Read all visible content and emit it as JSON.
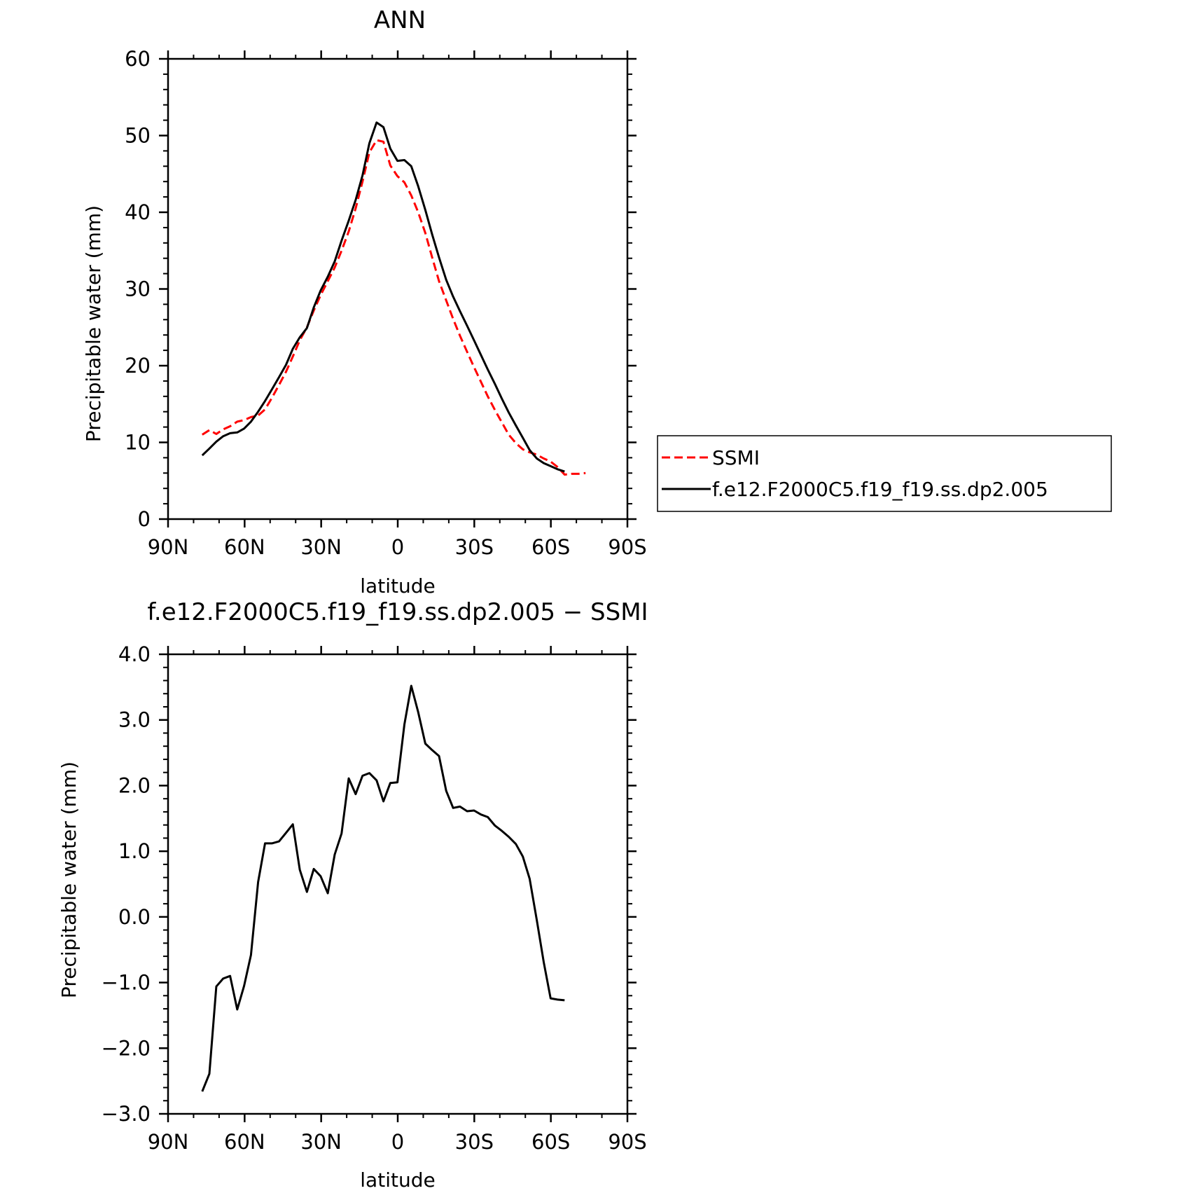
{
  "colors": {
    "ssmi": "#ff0000",
    "model": "#000000",
    "axis": "#000000"
  },
  "chart_data": [
    {
      "type": "line",
      "title": "ANN",
      "xlabel": "latitude",
      "ylabel": "Precipitable water (mm)",
      "xlim": [
        90,
        -90
      ],
      "ylim": [
        0,
        60
      ],
      "x_ticks": [
        90,
        60,
        30,
        0,
        -30,
        -60,
        -90
      ],
      "x_tick_labels": [
        "90N",
        "60N",
        "30N",
        "0",
        "30S",
        "60S",
        "90S"
      ],
      "y_ticks": [
        0,
        10,
        20,
        30,
        40,
        50,
        60
      ],
      "y_tick_labels": [
        "0",
        "10",
        "20",
        "30",
        "40",
        "50",
        "60"
      ],
      "legend_position": "right",
      "series": [
        {
          "name": "SSMI",
          "color": "#ff0000",
          "dash": "dashed",
          "x": [
            76.6,
            73.8,
            71.1,
            68.4,
            65.7,
            62.9,
            60.2,
            57.5,
            54.7,
            52.0,
            49.3,
            46.5,
            43.8,
            41.1,
            38.4,
            35.6,
            32.9,
            30.2,
            27.4,
            24.7,
            22.0,
            19.2,
            16.5,
            13.8,
            11.1,
            8.3,
            5.6,
            2.9,
            0.1,
            -2.6,
            -5.3,
            -8.0,
            -10.8,
            -13.5,
            -16.2,
            -19.0,
            -21.7,
            -24.4,
            -27.2,
            -29.9,
            -32.6,
            -35.3,
            -38.1,
            -40.8,
            -43.5,
            -46.3,
            -49.0,
            -51.7,
            -54.5,
            -57.2,
            -59.9,
            -62.6,
            -65.4,
            -68.1,
            -70.8,
            -73.6
          ],
          "y": [
            11.0,
            11.6,
            11.1,
            11.7,
            12.1,
            12.7,
            12.9,
            13.3,
            13.5,
            14.3,
            15.8,
            17.5,
            19.2,
            21.2,
            23.3,
            25.0,
            27.2,
            29.2,
            31.0,
            32.8,
            35.0,
            37.5,
            40.5,
            44.0,
            47.8,
            49.4,
            49.2,
            46.1,
            44.7,
            43.9,
            42.2,
            40.0,
            37.3,
            34.1,
            31.0,
            28.5,
            26.1,
            23.9,
            21.8,
            19.8,
            17.9,
            16.0,
            14.2,
            12.6,
            11.0,
            9.9,
            9.1,
            8.7,
            8.4,
            7.9,
            7.5,
            6.8,
            5.8,
            5.9,
            5.9,
            6.0
          ]
        },
        {
          "name": "f.e12.F2000C5.f19_f19.ss.dp2.005",
          "color": "#000000",
          "dash": "solid",
          "x": [
            76.6,
            73.8,
            71.1,
            68.4,
            65.7,
            62.9,
            60.2,
            57.5,
            54.7,
            52.0,
            49.3,
            46.5,
            43.8,
            41.1,
            38.4,
            35.6,
            32.9,
            30.2,
            27.4,
            24.7,
            22.0,
            19.2,
            16.5,
            13.8,
            11.1,
            8.3,
            5.6,
            2.9,
            0.1,
            -2.6,
            -5.3,
            -8.0,
            -10.8,
            -13.5,
            -16.2,
            -19.0,
            -21.7,
            -24.4,
            -27.2,
            -29.9,
            -32.6,
            -35.3,
            -38.1,
            -40.8,
            -43.5,
            -46.3,
            -49.0,
            -51.7,
            -54.5,
            -57.2,
            -59.9,
            -62.6,
            -65.4
          ],
          "y": [
            8.3,
            9.2,
            10.1,
            10.8,
            11.2,
            11.3,
            11.8,
            12.7,
            14.0,
            15.4,
            16.9,
            18.5,
            20.1,
            22.2,
            23.7,
            24.9,
            27.6,
            29.8,
            31.6,
            33.6,
            36.3,
            38.9,
            41.6,
            44.8,
            49.0,
            51.7,
            51.1,
            48.3,
            46.7,
            46.8,
            46.0,
            43.4,
            40.3,
            37.1,
            34.1,
            31.2,
            29.0,
            27.1,
            25.2,
            23.3,
            21.4,
            19.5,
            17.6,
            15.7,
            13.9,
            12.2,
            10.6,
            9.0,
            7.9,
            7.3,
            6.9,
            6.5,
            6.2
          ]
        }
      ]
    },
    {
      "type": "line",
      "title": "f.e12.F2000C5.f19_f19.ss.dp2.005 − SSMI",
      "xlabel": "latitude",
      "ylabel": "Precipitable water (mm)",
      "xlim": [
        90,
        -90
      ],
      "ylim": [
        -3.0,
        4.0
      ],
      "x_ticks": [
        90,
        60,
        30,
        0,
        -30,
        -60,
        -90
      ],
      "x_tick_labels": [
        "90N",
        "60N",
        "30N",
        "0",
        "30S",
        "60S",
        "90S"
      ],
      "y_ticks": [
        -3,
        -2,
        -1,
        0,
        1,
        2,
        3,
        4
      ],
      "y_tick_labels": [
        "−3.0",
        "−2.0",
        "−1.0",
        "0.0",
        "1.0",
        "2.0",
        "3.0",
        "4.0"
      ],
      "series": [
        {
          "color": "#000000",
          "dash": "solid",
          "x": [
            76.6,
            73.8,
            71.1,
            68.4,
            65.7,
            62.9,
            60.2,
            57.5,
            54.7,
            52.0,
            49.3,
            46.5,
            43.8,
            41.1,
            38.4,
            35.6,
            32.9,
            30.2,
            27.4,
            24.7,
            22.0,
            19.2,
            16.5,
            13.8,
            11.1,
            8.3,
            5.6,
            2.9,
            0.1,
            -2.6,
            -5.3,
            -8.0,
            -10.8,
            -13.5,
            -16.2,
            -19.0,
            -21.7,
            -24.4,
            -27.2,
            -29.9,
            -32.6,
            -35.3,
            -38.1,
            -40.8,
            -43.5,
            -46.3,
            -49.0,
            -51.7,
            -54.5,
            -57.2,
            -59.9,
            -62.6,
            -65.4
          ],
          "y": [
            -2.66,
            -2.39,
            -1.06,
            -0.94,
            -0.9,
            -1.41,
            -1.05,
            -0.58,
            0.53,
            1.12,
            1.12,
            1.15,
            1.28,
            1.41,
            0.72,
            0.38,
            0.73,
            0.62,
            0.36,
            0.95,
            1.27,
            2.11,
            1.87,
            2.15,
            2.19,
            2.08,
            1.76,
            2.04,
            2.05,
            2.93,
            3.52,
            3.12,
            2.64,
            2.54,
            2.45,
            1.92,
            1.66,
            1.68,
            1.61,
            1.62,
            1.56,
            1.52,
            1.39,
            1.31,
            1.22,
            1.11,
            0.92,
            0.58,
            -0.05,
            -0.69,
            -1.24,
            -1.26,
            -1.27
          ]
        }
      ]
    }
  ]
}
